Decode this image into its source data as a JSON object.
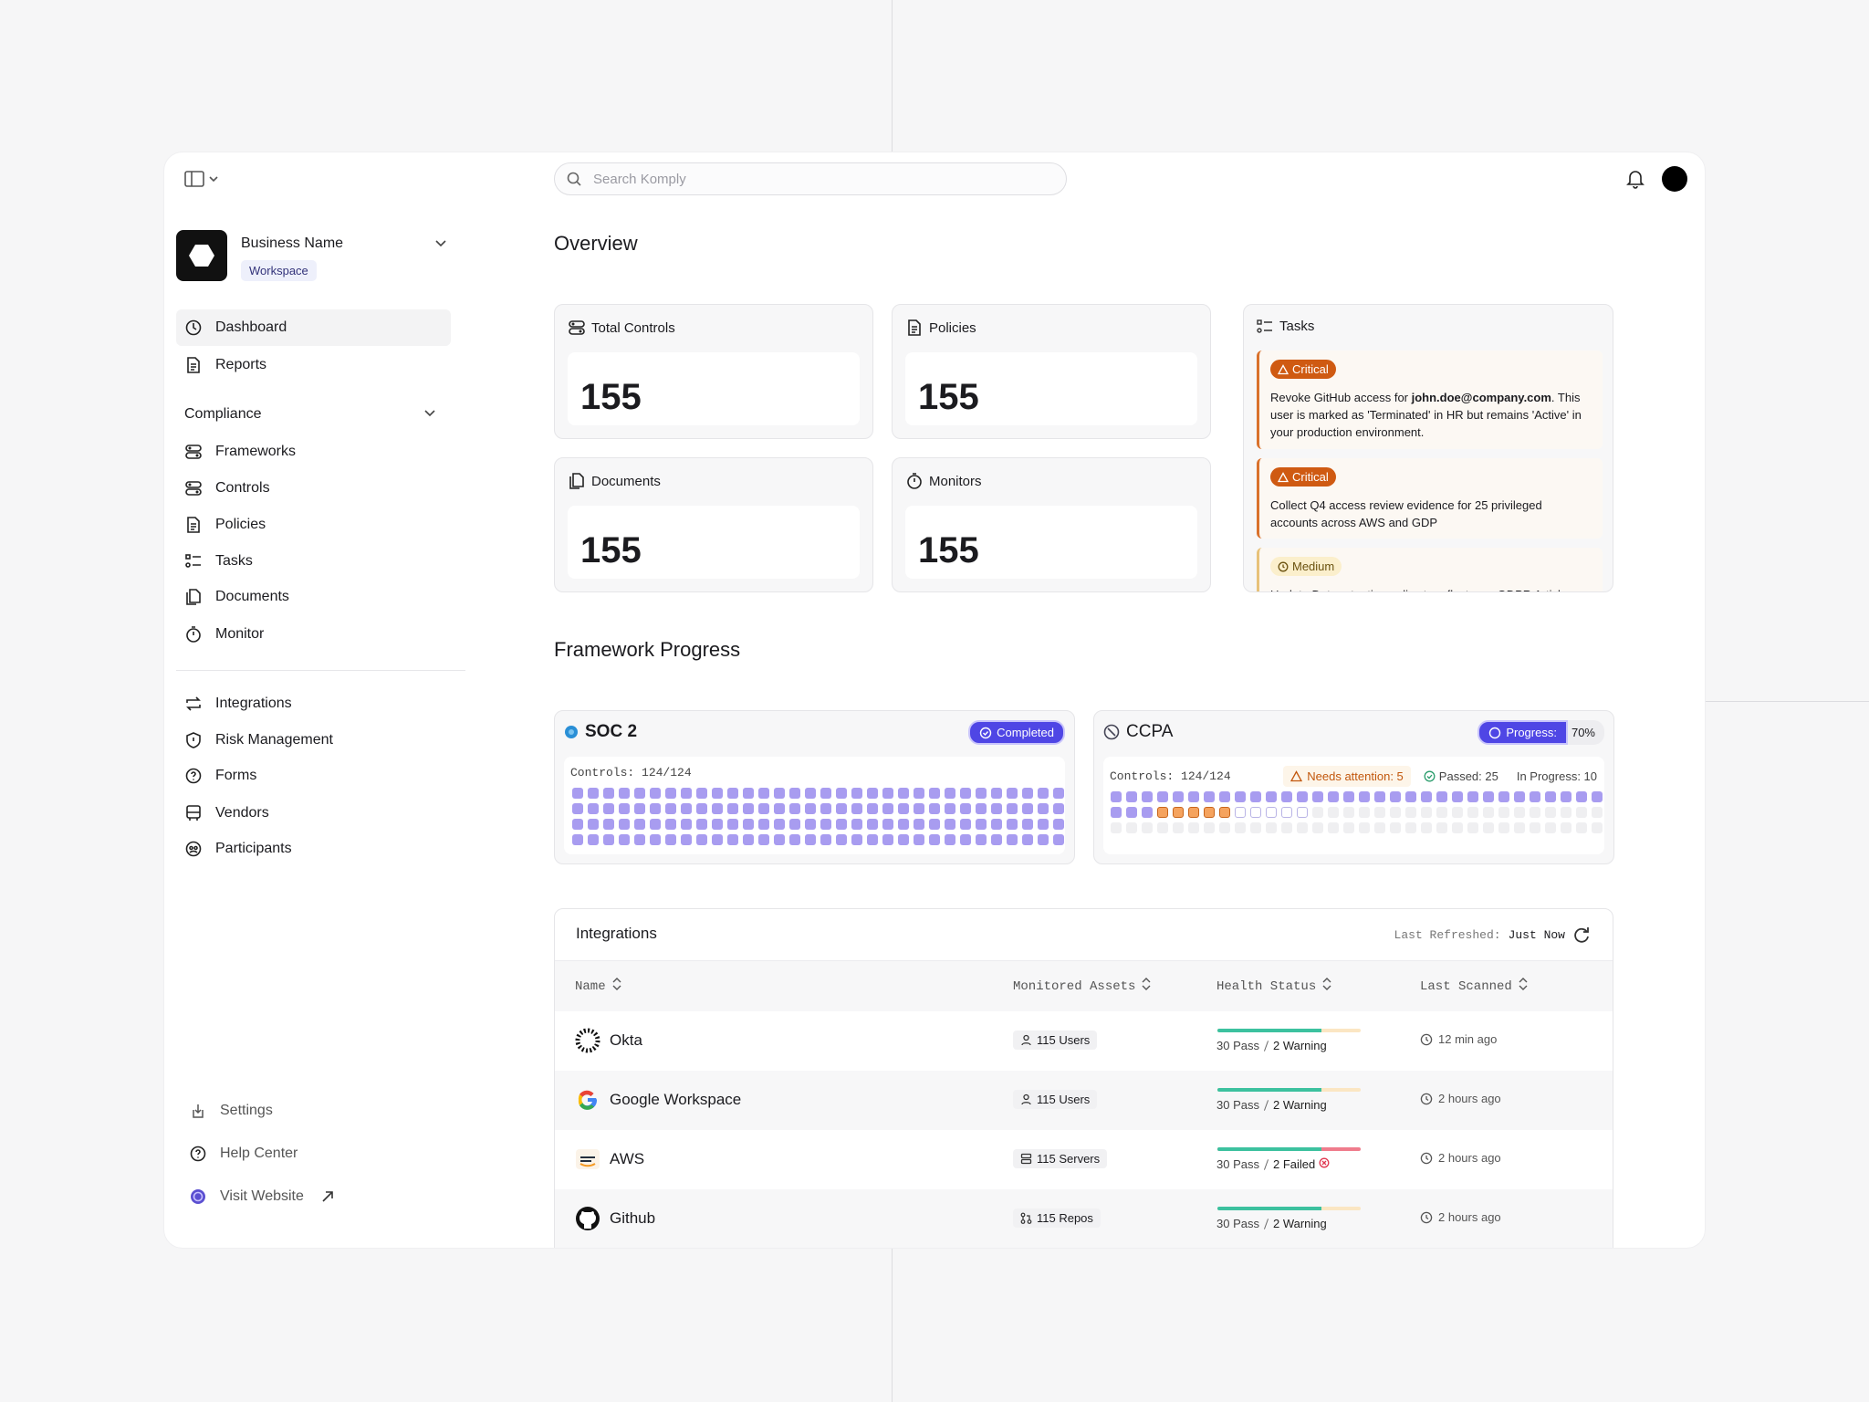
{
  "topbar": {
    "search_placeholder": "Search Komply"
  },
  "workspace": {
    "name": "Business Name",
    "badge": "Workspace"
  },
  "nav": {
    "main": [
      "Dashboard",
      "Reports"
    ],
    "section_title": "Compliance",
    "compliance": [
      "Frameworks",
      "Controls",
      "Policies",
      "Tasks",
      "Documents",
      "Monitor"
    ],
    "other": [
      "Integrations",
      "Risk Management",
      "Forms",
      "Vendors",
      "Participants"
    ],
    "footer": [
      "Settings",
      "Help Center",
      "Visit Website"
    ]
  },
  "overview": {
    "title": "Overview",
    "cards": [
      {
        "label": "Total Controls",
        "value": "155"
      },
      {
        "label": "Policies",
        "value": "155"
      },
      {
        "label": "Documents",
        "value": "155"
      },
      {
        "label": "Monitors",
        "value": "155"
      }
    ]
  },
  "tasks": {
    "title": "Tasks",
    "items": [
      {
        "severity": "Critical",
        "text_before": "Revoke GitHub access for ",
        "email": "john.doe@company.com",
        "text_after": ". This user is marked as 'Terminated' in HR but remains 'Active' in your production environment."
      },
      {
        "severity": "Critical",
        "text_before": "Collect Q4 access review evidence for 25 privileged accounts across AWS and GDP"
      },
      {
        "severity": "Medium",
        "text_before": "Update Data retention policy to reflect new GDPR Article"
      }
    ]
  },
  "framework_progress": {
    "title": "Framework Progress",
    "frameworks": [
      {
        "name": "SOC 2",
        "status": "Completed",
        "controls": "Controls: 124/124"
      },
      {
        "name": "CCPA",
        "status": "Progress:",
        "progress": "70%",
        "controls": "Controls: 124/124",
        "needs_attention": "Needs attention: 5",
        "passed": "Passed: 25",
        "in_progress": "In Progress: 10"
      }
    ]
  },
  "integrations": {
    "title": "Integrations",
    "last_refreshed_label": "Last Refreshed:",
    "last_refreshed": "Just Now",
    "columns": [
      "Name",
      "Monitored Assets",
      "Health Status",
      "Last Scanned"
    ],
    "rows": [
      {
        "name": "Okta",
        "assets": "115 Users",
        "pass": "30 Pass",
        "issue": "2 Warning",
        "scanned": "12 min ago"
      },
      {
        "name": "Google Workspace",
        "assets": "115 Users",
        "pass": "30 Pass",
        "issue": "2 Warning",
        "scanned": "2 hours ago"
      },
      {
        "name": "AWS",
        "assets": "115 Servers",
        "pass": "30 Pass",
        "issue": "2 Failed",
        "scanned": "2 hours ago"
      },
      {
        "name": "Github",
        "assets": "115 Repos",
        "pass": "30 Pass",
        "issue": "2 Warning",
        "scanned": "2 hours ago"
      }
    ]
  }
}
